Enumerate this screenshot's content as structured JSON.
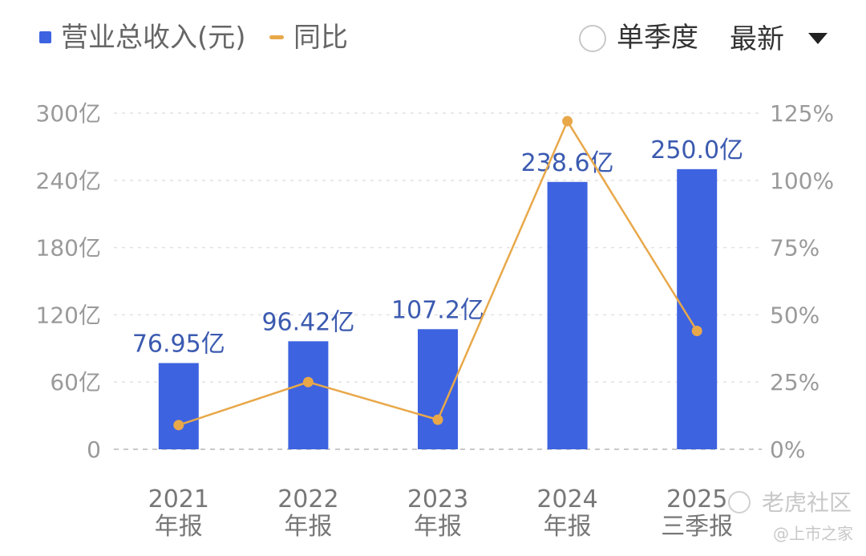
{
  "legend": {
    "bar_label": "营业总收入(元)",
    "line_label": "同比"
  },
  "controls": {
    "quarter_toggle_label": "单季度",
    "quarter_toggle_checked": false,
    "sort_label": "最新",
    "sort_icon": "triangle-down-icon"
  },
  "watermark": {
    "brand": "老虎社区",
    "source": "@上市之家"
  },
  "colors": {
    "bar": "#3d63e0",
    "line": "#e8a84a",
    "bar_label": "#3b5ab0",
    "grid": "#e2e2e2",
    "axis": "#9a9a9a"
  },
  "chart_data": {
    "type": "bar",
    "categories": [
      "2021年报",
      "2022年报",
      "2023年报",
      "2024年报",
      "2025三季报"
    ],
    "category_lines": [
      [
        "2021",
        "年报"
      ],
      [
        "2022",
        "年报"
      ],
      [
        "2023",
        "年报"
      ],
      [
        "2024",
        "年报"
      ],
      [
        "2025",
        "三季报"
      ]
    ],
    "series": [
      {
        "name": "营业总收入(元)",
        "type": "bar",
        "axis": "left",
        "unit": "亿",
        "values": [
          76.95,
          96.42,
          107.2,
          238.6,
          250.0
        ],
        "labels": [
          "76.95亿",
          "96.42亿",
          "107.2亿",
          "238.6亿",
          "250.0亿"
        ]
      },
      {
        "name": "同比",
        "type": "line",
        "axis": "right",
        "unit": "%",
        "values": [
          9,
          25,
          11,
          122,
          44
        ]
      }
    ],
    "y_left": {
      "ylim": [
        0,
        300
      ],
      "ticks": [
        0,
        60,
        120,
        180,
        240,
        300
      ],
      "tick_labels": [
        "0",
        "60亿",
        "120亿",
        "180亿",
        "240亿",
        "300亿"
      ]
    },
    "y_right": {
      "ylim": [
        0,
        125
      ],
      "ticks": [
        0,
        25,
        50,
        75,
        100,
        125
      ],
      "tick_labels": [
        "0%",
        "25%",
        "50%",
        "75%",
        "100%",
        "125%"
      ]
    },
    "grid": true,
    "legend_position": "top-left"
  }
}
